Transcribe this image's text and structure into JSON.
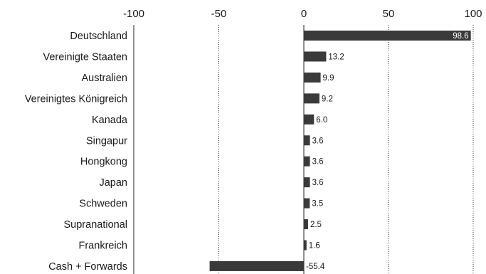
{
  "chart_data": {
    "type": "bar",
    "orientation": "horizontal",
    "categories": [
      "Deutschland",
      "Vereinigte Staaten",
      "Australien",
      "Vereinigtes Königreich",
      "Kanada",
      "Singapur",
      "Hongkong",
      "Japan",
      "Schweden",
      "Supranational",
      "Frankreich",
      "Cash + Forwards"
    ],
    "values": [
      98.6,
      13.2,
      9.9,
      9.2,
      6.0,
      3.6,
      3.6,
      3.6,
      3.5,
      2.5,
      1.6,
      -55.4
    ],
    "value_labels": [
      "98.6",
      "13.2",
      "9.9",
      "9.2",
      "6.0",
      "3.6",
      "3.6",
      "3.6",
      "3.5",
      "2.5",
      "1.6",
      "-55.4"
    ],
    "xlim": [
      -100,
      100
    ],
    "xticks": [
      -100,
      -50,
      0,
      50,
      100
    ],
    "xtick_labels": [
      "-100",
      "-50",
      "0",
      "50",
      "100"
    ],
    "xaxis_position": "top",
    "grid": "vertical dotted",
    "bar_color": "#3a3a3a",
    "title": "",
    "xlabel": "",
    "ylabel": ""
  }
}
